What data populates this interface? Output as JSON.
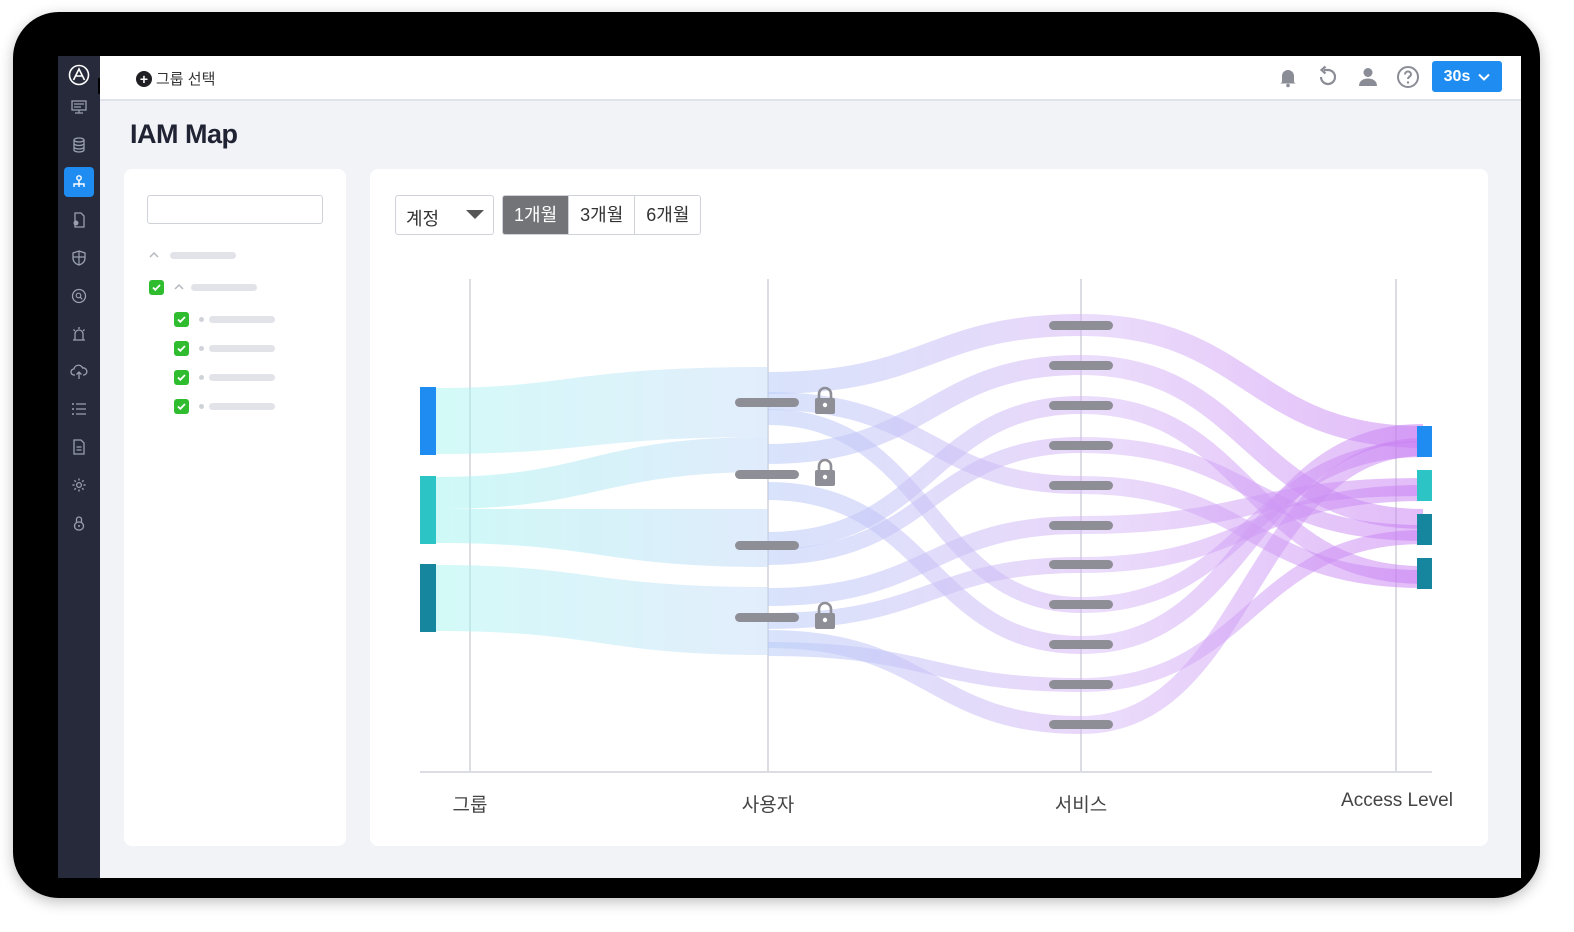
{
  "header": {
    "group_select_label": "그룹 선택",
    "refresh_interval": "30s"
  },
  "page": {
    "title": "IAM Map"
  },
  "filters": {
    "dimension_selected": "계정",
    "periods": [
      "1개월",
      "3개월",
      "6개월"
    ],
    "period_selected": "1개월"
  },
  "sidebar": {
    "icons": [
      "logo-icon",
      "monitor-icon",
      "database-icon",
      "iam-map-icon",
      "document-user-icon",
      "shield-icon",
      "search-circle-icon",
      "alert-siren-icon",
      "cloud-upload-icon",
      "list-icon",
      "report-icon",
      "settings-icon",
      "lock-icon"
    ],
    "active": "iam-map-icon"
  },
  "tree": {
    "checked_items": 5
  },
  "chart_data": {
    "type": "sankey",
    "columns": [
      "그룹",
      "사용자",
      "서비스",
      "Access Level"
    ],
    "colors": {
      "group_1": "#1e8cf0",
      "group_2": "#2cc4c4",
      "group_3": "#16869e",
      "flow_left": "#aef0f0",
      "flow_right": "#d49cf7"
    },
    "locked_users": [
      true,
      true,
      false,
      true
    ],
    "service_count": 11,
    "access_levels": 4
  }
}
